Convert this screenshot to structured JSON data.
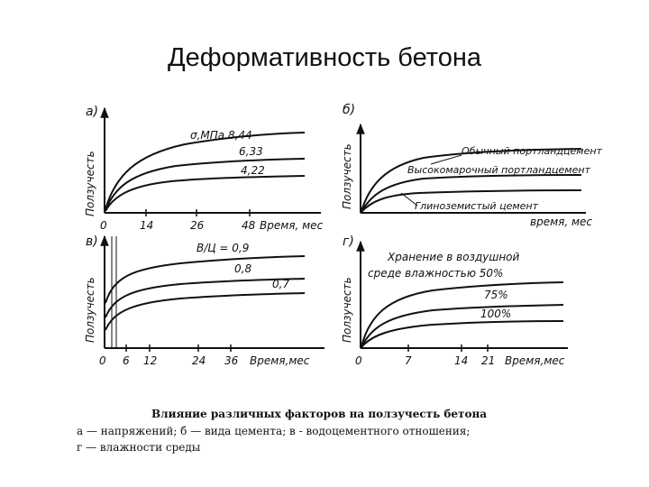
{
  "slide": {
    "title": "Деформативность бетона"
  },
  "panels": [
    {
      "id": "a",
      "letter": "а)",
      "ylabel": "Ползучесть",
      "xlabel": "Время, мес",
      "xticks": [
        "0",
        "14",
        "26",
        "48"
      ],
      "curve_labels": [
        "σ,МПа 8,44",
        "6,33",
        "4,22"
      ]
    },
    {
      "id": "b",
      "letter": "б)",
      "ylabel": "Ползучесть",
      "xlabel": "время, мес",
      "xticks": [],
      "curve_labels": [
        "Обычный портландцемент",
        "Высокомарочный портландцемент",
        "Глиноземистый цемент"
      ]
    },
    {
      "id": "v",
      "letter": "в)",
      "ylabel": "Ползучесть",
      "xlabel": "Время,мес",
      "xticks": [
        "0",
        "6",
        "12",
        "24",
        "36"
      ],
      "curve_labels": [
        "В/Ц = 0,9",
        "0,8",
        "0,7"
      ]
    },
    {
      "id": "g",
      "letter": "г)",
      "ylabel": "Ползучесть",
      "xlabel": "Время,мес",
      "xticks": [
        "0",
        "7",
        "14",
        "21"
      ],
      "curve_labels": [
        "Хранение в воздушной",
        "среде влажностью 50%",
        "75%",
        "100%"
      ]
    }
  ],
  "caption": {
    "title": "Влияние различных факторов на ползучесть бетона",
    "line1": "а — напряжений;  б — вида цемента;  в - водоцементного отношения;",
    "line2": "г — влажности среды"
  }
}
